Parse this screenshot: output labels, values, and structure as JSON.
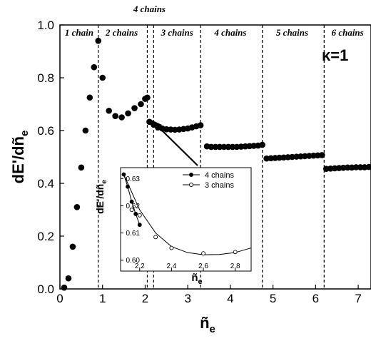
{
  "chart_data": [
    {
      "type": "scatter",
      "xlabel": "ñ",
      "xlabel_sub": "e",
      "ylabel": "dE'/dñ",
      "ylabel_sub": "e",
      "xlim": [
        0,
        7.3
      ],
      "ylim": [
        0,
        1.0
      ],
      "xticks": [
        0,
        1,
        2,
        3,
        4,
        5,
        6,
        7
      ],
      "yticks": [
        0.0,
        0.2,
        0.4,
        0.6,
        0.8,
        1.0
      ],
      "annotation": "κ=1",
      "boundaries": [
        0.9,
        2.05,
        2.2,
        3.3,
        4.75,
        6.2
      ],
      "regions": [
        {
          "label": "1 chain",
          "x": 0.45,
          "pos": "inside"
        },
        {
          "label": "2 chains",
          "x": 1.45,
          "pos": "inside"
        },
        {
          "label": "4 chains",
          "x": 2.1,
          "pos": "above"
        },
        {
          "label": "3 chains",
          "x": 2.75,
          "pos": "inside"
        },
        {
          "label": "4 chains",
          "x": 4.0,
          "pos": "inside"
        },
        {
          "label": "5 chains",
          "x": 5.45,
          "pos": "inside"
        },
        {
          "label": "6 chains",
          "x": 6.75,
          "pos": "inside"
        }
      ],
      "points": {
        "x": [
          0.1,
          0.2,
          0.3,
          0.4,
          0.5,
          0.6,
          0.7,
          0.8,
          0.9,
          1.0,
          1.15,
          1.3,
          1.45,
          1.6,
          1.75,
          1.9,
          2.0,
          2.05,
          2.1,
          2.2,
          2.3,
          2.4,
          2.5,
          2.6,
          2.7,
          2.8,
          2.9,
          3.0,
          3.1,
          3.2,
          3.3,
          3.45,
          3.55,
          3.65,
          3.75,
          3.85,
          3.95,
          4.05,
          4.15,
          4.25,
          4.35,
          4.45,
          4.55,
          4.65,
          4.75,
          4.85,
          4.95,
          5.05,
          5.15,
          5.25,
          5.35,
          5.45,
          5.55,
          5.65,
          5.75,
          5.85,
          5.95,
          6.05,
          6.15,
          6.25,
          6.35,
          6.45,
          6.55,
          6.65,
          6.75,
          6.85,
          6.95,
          7.05,
          7.15,
          7.25
        ],
        "y": [
          0.005,
          0.04,
          0.16,
          0.31,
          0.46,
          0.6,
          0.725,
          0.84,
          0.94,
          0.8,
          0.675,
          0.655,
          0.65,
          0.665,
          0.685,
          0.7,
          0.72,
          0.725,
          0.633,
          0.622,
          0.612,
          0.608,
          0.605,
          0.604,
          0.603,
          0.604,
          0.606,
          0.608,
          0.612,
          0.616,
          0.62,
          0.54,
          0.538,
          0.538,
          0.538,
          0.538,
          0.538,
          0.538,
          0.538,
          0.539,
          0.54,
          0.541,
          0.542,
          0.543,
          0.546,
          0.494,
          0.495,
          0.496,
          0.497,
          0.498,
          0.499,
          0.5,
          0.501,
          0.502,
          0.503,
          0.504,
          0.505,
          0.506,
          0.507,
          0.455,
          0.456,
          0.457,
          0.458,
          0.459,
          0.46,
          0.46,
          0.461,
          0.461,
          0.461,
          0.462
        ]
      }
    },
    {
      "type": "line",
      "role": "inset",
      "xlabel": "ñ",
      "xlabel_sub": "e",
      "ylabel": "dE'/dñ",
      "ylabel_sub": "e",
      "xlim": [
        2.08,
        2.9
      ],
      "ylim": [
        0.596,
        0.634
      ],
      "xticks": [
        2.2,
        2.4,
        2.6,
        2.8
      ],
      "yticks": [
        0.6,
        0.61,
        0.62,
        0.63
      ],
      "legend": "top-right",
      "series": [
        {
          "name": "4 chains",
          "marker": "filled",
          "x": [
            2.1,
            2.125,
            2.15,
            2.175,
            2.2
          ],
          "y": [
            0.6315,
            0.627,
            0.6215,
            0.617,
            0.613
          ]
        },
        {
          "name": "3 chains",
          "marker": "open",
          "x": [
            2.15,
            2.2,
            2.3,
            2.4,
            2.6,
            2.8
          ],
          "y": [
            0.6185,
            0.6165,
            0.6085,
            0.6045,
            0.6025,
            0.603
          ]
        }
      ],
      "fit_curve": {
        "x": [
          2.1,
          2.2,
          2.3,
          2.4,
          2.5,
          2.6,
          2.7,
          2.8,
          2.9
        ],
        "y": [
          0.6315,
          0.6185,
          0.61,
          0.605,
          0.6028,
          0.602,
          0.6021,
          0.6028,
          0.6045
        ]
      }
    }
  ]
}
